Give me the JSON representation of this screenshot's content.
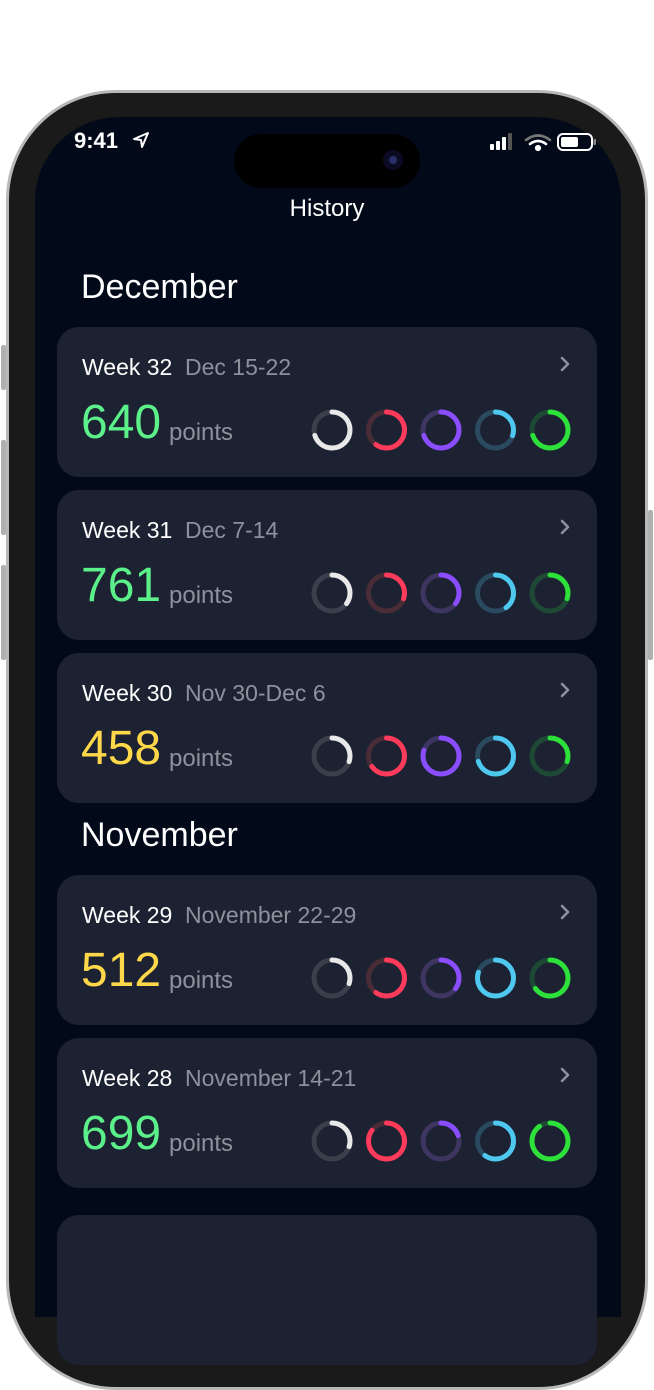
{
  "status_bar": {
    "time": "9:41",
    "icons": [
      "location-arrow-icon",
      "signal-icon",
      "wifi-icon",
      "battery-icon"
    ]
  },
  "header": {
    "title": "History"
  },
  "colors": {
    "green_points": "#5cf08a",
    "yellow_points": "#ffd84a",
    "card": "#1c2232",
    "background": "#020a1a"
  },
  "ring_colors": [
    {
      "fg": "#e8e8e8",
      "track": "#3a3f4b"
    },
    {
      "fg": "#ff3b5c",
      "track": "#4a2c36"
    },
    {
      "fg": "#8a4dff",
      "track": "#3e3560"
    },
    {
      "fg": "#4fc8f0",
      "track": "#2a4a60"
    },
    {
      "fg": "#2ee03a",
      "track": "#1e4a35"
    }
  ],
  "sections": [
    {
      "title": "December",
      "weeks": [
        {
          "week": "Week 32",
          "dates": "Dec 15-22",
          "points": "640",
          "points_label": "points",
          "tone": "green",
          "rings": [
            0.7,
            0.6,
            0.7,
            0.3,
            0.7
          ]
        },
        {
          "week": "Week 31",
          "dates": "Dec 7-14",
          "points": "761",
          "points_label": "points",
          "tone": "green",
          "rings": [
            0.35,
            0.3,
            0.35,
            0.4,
            0.3
          ]
        },
        {
          "week": "Week 30",
          "dates": "Nov 30-Dec 6",
          "points": "458",
          "points_label": "points",
          "tone": "yellow",
          "rings": [
            0.3,
            0.65,
            0.8,
            0.7,
            0.3
          ]
        }
      ]
    },
    {
      "title": "November",
      "weeks": [
        {
          "week": "Week 29",
          "dates": "November 22-29",
          "points": "512",
          "points_label": "points",
          "tone": "yellow",
          "rings": [
            0.3,
            0.6,
            0.35,
            0.8,
            0.65
          ]
        },
        {
          "week": "Week 28",
          "dates": "November 14-21",
          "points": "699",
          "points_label": "points",
          "tone": "green",
          "rings": [
            0.3,
            0.85,
            0.2,
            0.6,
            0.9
          ]
        }
      ]
    }
  ]
}
